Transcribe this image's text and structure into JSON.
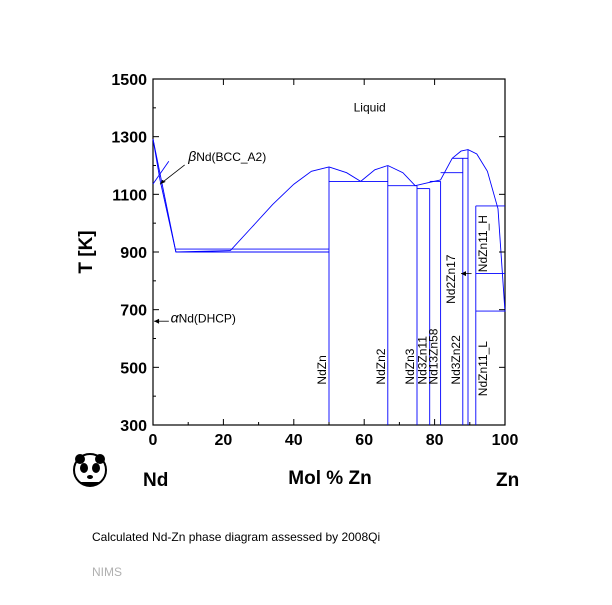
{
  "chart_data": {
    "type": "line",
    "title": "",
    "xlabel": "Mol % Zn",
    "ylabel": "T [K]",
    "xlim": [
      0,
      100
    ],
    "ylim": [
      300,
      1500
    ],
    "x_ticks": [
      "0",
      "20",
      "40",
      "60",
      "80",
      "100"
    ],
    "y_ticks": [
      "300",
      "500",
      "700",
      "900",
      "1100",
      "1300",
      "1500"
    ],
    "x_tick_values": [
      0,
      20,
      40,
      60,
      80,
      100
    ],
    "y_tick_values": [
      300,
      500,
      700,
      900,
      1100,
      1300,
      1500
    ],
    "grid": false,
    "line_color": "#0000ff",
    "end_labels": {
      "left": "Nd",
      "right": "Zn"
    },
    "region_labels": [
      {
        "text": "Liquid",
        "x": 57,
        "y": 1388
      },
      {
        "text": "Nd(BCC_A2)",
        "greek": "β",
        "x": 10,
        "y": 1215
      },
      {
        "text": "Nd(DHCP)",
        "greek": "α",
        "x": 5,
        "y": 655
      }
    ],
    "compounds": [
      {
        "label": "NdZn",
        "x": 50.0,
        "tmax": 1195
      },
      {
        "label": "NdZn2",
        "x": 66.7,
        "tmax": 1200
      },
      {
        "label": "NdZn3",
        "x": 75.0,
        "tmax": 1130
      },
      {
        "label": "Nd3Zn11",
        "x": 78.6,
        "tmax": 1120
      },
      {
        "label": "Nd13Zn58",
        "x": 81.7,
        "tmax": 1145
      },
      {
        "label": "Nd3Zn22",
        "x": 88.0,
        "tmax": 1225
      },
      {
        "label": "Nd2Zn17",
        "x": 89.5,
        "tmax": 1255
      },
      {
        "label": "NdZn11_H",
        "x": 91.7,
        "tmax": 1060,
        "tmin": 825
      },
      {
        "label": "NdZn11_L",
        "x": 91.7,
        "tmax": 695
      }
    ],
    "lines": [
      {
        "name": "liquidus-nd-side",
        "x": [
          0,
          6.5,
          22
        ],
        "y": [
          1292,
          900,
          905
        ]
      },
      {
        "name": "liquidus-ndzn-1",
        "x": [
          22,
          28,
          34,
          40,
          45,
          50
        ],
        "y": [
          905,
          985,
          1065,
          1135,
          1180,
          1195
        ]
      },
      {
        "name": "liquidus-ndzn-2",
        "x": [
          50,
          55,
          59
        ],
        "y": [
          1195,
          1175,
          1145
        ]
      },
      {
        "name": "liquidus-ndzn2-1",
        "x": [
          59,
          63,
          66.7
        ],
        "y": [
          1145,
          1185,
          1200
        ]
      },
      {
        "name": "liquidus-ndzn2-2",
        "x": [
          66.7,
          71,
          74.5
        ],
        "y": [
          1200,
          1175,
          1130
        ]
      },
      {
        "name": "liquidus-mid",
        "x": [
          74.5,
          78,
          81.7,
          85
        ],
        "y": [
          1130,
          1140,
          1150,
          1225
        ]
      },
      {
        "name": "liquidus-zn-side",
        "x": [
          85,
          87.5,
          89.5,
          92,
          95,
          98,
          100
        ],
        "y": [
          1225,
          1250,
          1255,
          1240,
          1180,
          1050,
          693
        ]
      },
      {
        "name": "solvus-bcc-left",
        "x": [
          0,
          2,
          6.5
        ],
        "y": [
          1292,
          1150,
          900
        ]
      },
      {
        "name": "bcc-dhcp-transition",
        "x": [
          0,
          4.5
        ],
        "y": [
          1136,
          1215
        ]
      },
      {
        "name": "eutectic-1",
        "x": [
          6.5,
          50
        ],
        "y": [
          900,
          900
        ]
      },
      {
        "name": "eutectic-2",
        "x": [
          6.5,
          50
        ],
        "y": [
          910,
          910
        ]
      },
      {
        "name": "peritectic-ndzn",
        "x": [
          50,
          66.7
        ],
        "y": [
          1145,
          1145
        ]
      },
      {
        "name": "peritectic-ndzn3",
        "x": [
          66.7,
          75
        ],
        "y": [
          1130,
          1130
        ]
      },
      {
        "name": "peritectic-ndzn3-b",
        "x": [
          75,
          78.6
        ],
        "y": [
          1120,
          1120
        ]
      },
      {
        "name": "peritectic-nd13zn58",
        "x": [
          78.6,
          81.7
        ],
        "y": [
          1145,
          1145
        ]
      },
      {
        "name": "peritectic-nd3zn22",
        "x": [
          81.7,
          88
        ],
        "y": [
          1175,
          1175
        ]
      },
      {
        "name": "peritectic-nd2zn17",
        "x": [
          85,
          89.5
        ],
        "y": [
          1225,
          1225
        ]
      },
      {
        "name": "ndzn11-h-top",
        "x": [
          91.7,
          100
        ],
        "y": [
          1060,
          1060
        ]
      },
      {
        "name": "ndzn11-transition",
        "x": [
          91.7,
          100
        ],
        "y": [
          825,
          825
        ]
      },
      {
        "name": "ndzn11-l-top",
        "x": [
          91.7,
          100
        ],
        "y": [
          695,
          695
        ]
      },
      {
        "name": "vertical-ndzn",
        "x": [
          50,
          50
        ],
        "y": [
          300,
          1195
        ]
      },
      {
        "name": "vertical-ndzn2",
        "x": [
          66.7,
          66.7
        ],
        "y": [
          300,
          1200
        ]
      },
      {
        "name": "vertical-ndzn3",
        "x": [
          75,
          75
        ],
        "y": [
          300,
          1130
        ]
      },
      {
        "name": "vertical-nd3zn11",
        "x": [
          78.6,
          78.6
        ],
        "y": [
          300,
          1120
        ]
      },
      {
        "name": "vertical-nd13zn58",
        "x": [
          81.7,
          81.7
        ],
        "y": [
          300,
          1145
        ]
      },
      {
        "name": "vertical-nd3zn22",
        "x": [
          88,
          88
        ],
        "y": [
          300,
          1225
        ]
      },
      {
        "name": "vertical-nd2zn17",
        "x": [
          89.5,
          89.5
        ],
        "y": [
          300,
          1255
        ]
      },
      {
        "name": "vertical-ndzn11",
        "x": [
          91.7,
          91.7
        ],
        "y": [
          300,
          1060
        ]
      }
    ]
  },
  "caption": "Calculated Nd-Zn phase diagram assessed by 2008Qi",
  "footer": "NIMS",
  "logo_icon": "panda-logo-icon"
}
